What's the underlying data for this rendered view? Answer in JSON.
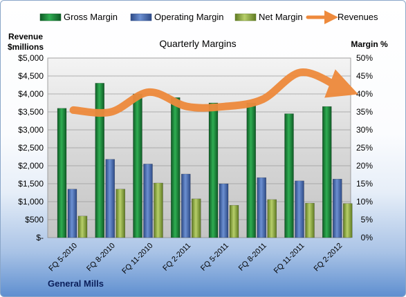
{
  "chart_data": {
    "type": "bar",
    "title": "Quarterly Margins",
    "left_axis_title_line1": "Revenue",
    "left_axis_title_line2": "$millions",
    "right_axis_title": "Margin %",
    "company": "General Mills",
    "categories": [
      "FQ 5-2010",
      "FQ 8-2010",
      "FQ 11-2010",
      "FQ 2-2011",
      "FQ 5-2011",
      "FQ 8-2011",
      "FQ 11-2011",
      "FQ 2-2012"
    ],
    "left_ticks": [
      "$-",
      "$500",
      "$1,000",
      "$1,500",
      "$2,000",
      "$2,500",
      "$3,000",
      "$3,500",
      "$4,000",
      "$4,500",
      "$5,000"
    ],
    "right_ticks": [
      "0%",
      "5%",
      "10%",
      "15%",
      "20%",
      "25%",
      "30%",
      "35%",
      "40%",
      "45%",
      "50%"
    ],
    "left_ylim": [
      0,
      5000
    ],
    "right_ylim": [
      0,
      50
    ],
    "series": [
      {
        "name": "Gross Margin",
        "axis": "right",
        "type": "bar",
        "color": "#1f8a3a",
        "values": [
          36,
          43,
          40,
          39,
          37.5,
          37.5,
          34.5,
          36.5
        ]
      },
      {
        "name": "Operating Margin",
        "axis": "right",
        "type": "bar",
        "color": "#4a6fb5",
        "values": [
          13.5,
          21.8,
          20.5,
          17.7,
          15,
          16.7,
          15.8,
          16.3
        ]
      },
      {
        "name": "Net Margin",
        "axis": "right",
        "type": "bar",
        "color": "#93b04a",
        "values": [
          6,
          13.5,
          15.2,
          10.8,
          9,
          10.6,
          9.6,
          9.5
        ]
      },
      {
        "name": "Revenues",
        "axis": "left",
        "type": "line",
        "color": "#ee8a3c",
        "values": [
          3550,
          3500,
          4050,
          3650,
          3650,
          3850,
          4600,
          4200
        ]
      }
    ],
    "grid": true,
    "legend_position": "top"
  }
}
